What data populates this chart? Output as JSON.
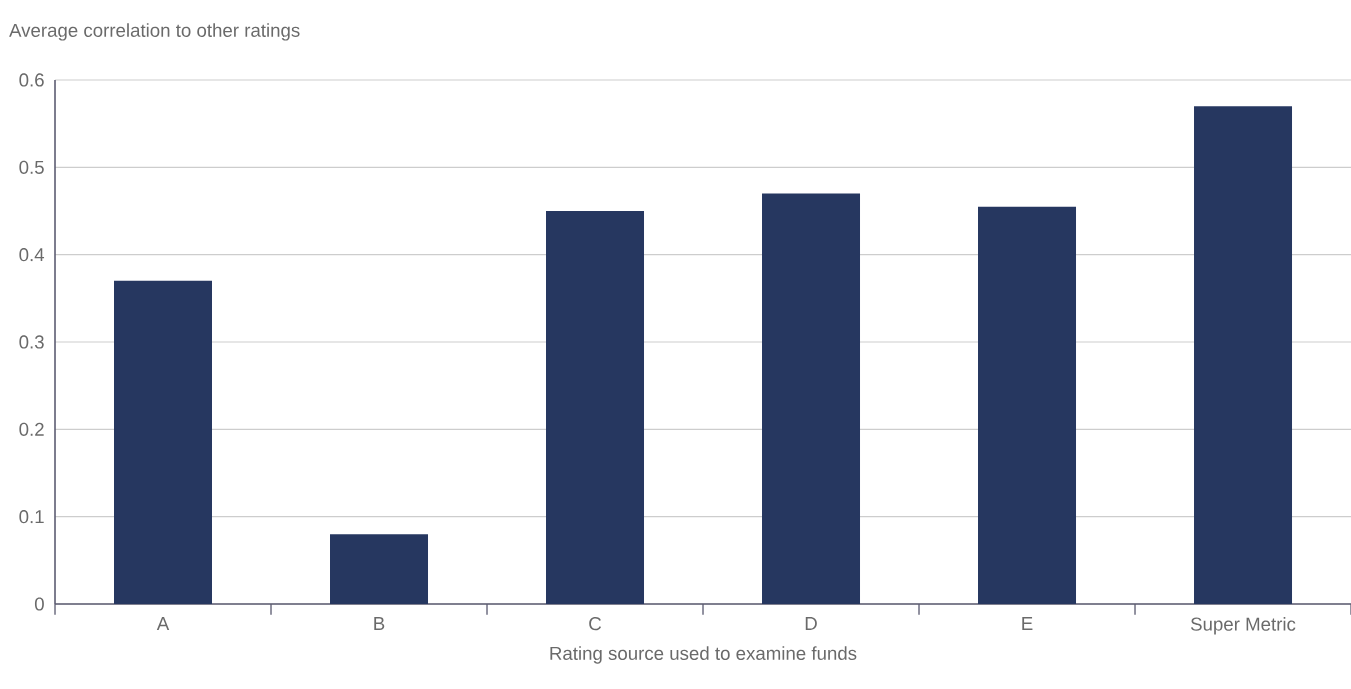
{
  "chart_data": {
    "type": "bar",
    "ylabel": "Average correlation to other ratings",
    "xlabel": "Rating source used to examine funds",
    "categories": [
      "A",
      "B",
      "C",
      "D",
      "E",
      "Super Metric"
    ],
    "values": [
      0.37,
      0.08,
      0.45,
      0.47,
      0.455,
      0.57
    ],
    "color": "#263760",
    "ylim": [
      0,
      0.6
    ],
    "yticks": [
      0,
      0.1,
      0.2,
      0.3,
      0.4,
      0.5,
      0.6
    ],
    "grid": "y"
  }
}
